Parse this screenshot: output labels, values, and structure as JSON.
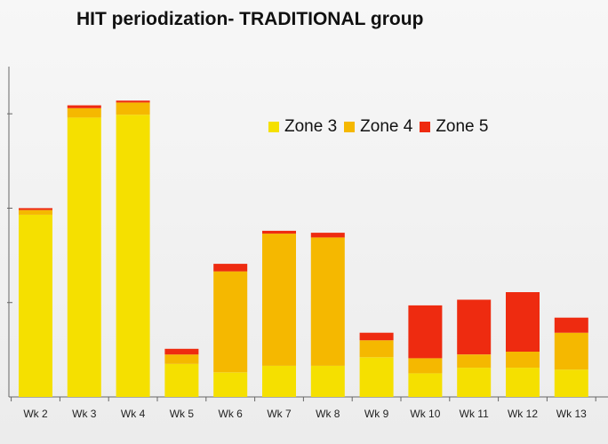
{
  "chart_data": {
    "type": "bar",
    "stacked": true,
    "title": "HIT periodization- TRADITIONAL group",
    "categories": [
      "Wk 2",
      "Wk 3",
      "Wk 4",
      "Wk 5",
      "Wk 6",
      "Wk 7",
      "Wk 8",
      "Wk 9",
      "Wk 10",
      "Wk 11",
      "Wk 12",
      "Wk 13"
    ],
    "series": [
      {
        "name": "Zone 3",
        "color": "#f5e000",
        "values": [
          193,
          296,
          299,
          35,
          26,
          33,
          33,
          42,
          25,
          31,
          31,
          29
        ]
      },
      {
        "name": "Zone 4",
        "color": "#f5b800",
        "values": [
          5,
          10,
          13,
          10,
          107,
          140,
          136,
          18,
          16,
          14,
          17,
          39
        ]
      },
      {
        "name": "Zone 5",
        "color": "#ee2b10",
        "values": [
          2,
          3,
          2,
          6,
          8,
          3,
          5,
          8,
          56,
          58,
          63,
          16
        ]
      }
    ],
    "ylim": [
      0,
      350
    ],
    "xlabel": "",
    "ylabel": "",
    "legend_position": "top-right",
    "grid": false
  }
}
